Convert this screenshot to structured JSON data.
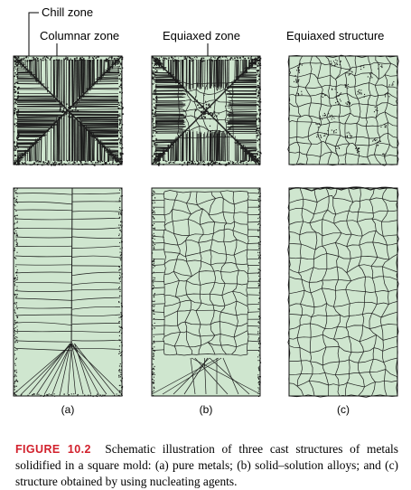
{
  "labels": {
    "chill_zone": "Chill zone",
    "columnar_zone": "Columnar zone",
    "equiaxed_zone": "Equiaxed zone",
    "equiaxed_structure": "Equiaxed structure"
  },
  "panels": [
    {
      "id": "a",
      "label": "(a)"
    },
    {
      "id": "b",
      "label": "(b)"
    },
    {
      "id": "c",
      "label": "(c)"
    }
  ],
  "caption": {
    "figure_number": "FIGURE 10.2",
    "text": "Schematic illustration of three cast structures of metals solidified in a square mold: (a) pure metals; (b) solid–solution alloys; and (c) structure obtained by using nucleating agents."
  },
  "colors": {
    "fill": "#cfe6cf",
    "line": "#222222",
    "accent": "#d2202c"
  }
}
